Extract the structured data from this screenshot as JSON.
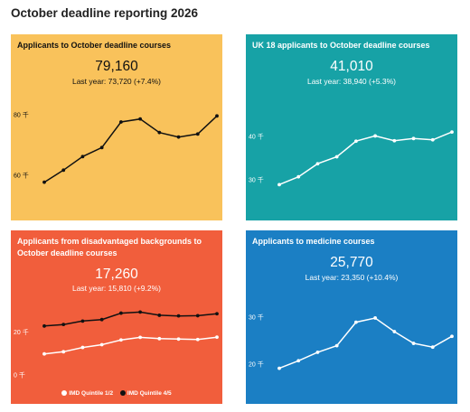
{
  "page": {
    "title": "October deadline reporting 2026"
  },
  "chart_data": [
    {
      "type": "line",
      "title": "Applicants to October deadline courses",
      "headline": "79,160",
      "subline": "Last year: 73,720 (+7.4%)",
      "y_ticks": [
        {
          "value": 60,
          "label": "60 千"
        },
        {
          "value": 80,
          "label": "80 千"
        }
      ],
      "ylim": [
        55,
        82
      ],
      "series": [
        {
          "values": [
            57.5,
            61.5,
            66.0,
            69.0,
            77.5,
            78.5,
            74.0,
            72.5,
            73.5,
            79.5
          ],
          "color": "#111111"
        }
      ],
      "colors": {
        "background": "#F9C25B",
        "text": "#111111"
      }
    },
    {
      "type": "line",
      "title": "UK 18 applicants to October deadline courses",
      "headline": "41,010",
      "subline": "Last year: 38,940 (+5.3%)",
      "y_ticks": [
        {
          "value": 30,
          "label": "30 千"
        },
        {
          "value": 40,
          "label": "40 千"
        }
      ],
      "ylim": [
        27,
        43
      ],
      "series": [
        {
          "values": [
            28.8,
            30.6,
            33.6,
            35.2,
            38.8,
            40.0,
            38.9,
            39.4,
            39.1,
            40.9
          ],
          "color": "#ffffff"
        }
      ],
      "colors": {
        "background": "#17A2A6",
        "text": "#ffffff"
      }
    },
    {
      "type": "line",
      "title": "Applicants from disadvantaged backgrounds to October deadline courses",
      "headline": "17,260",
      "subline": "Last year: 15,810 (+9.2%)",
      "y_ticks": [
        {
          "value": 0,
          "label": "0 千"
        },
        {
          "value": 20,
          "label": "20 千"
        }
      ],
      "ylim": [
        -2,
        30
      ],
      "series": [
        {
          "name": "IMD Quintile 1/2",
          "values": [
            9.5,
            10.5,
            12.5,
            13.8,
            16.0,
            17.2,
            16.6,
            16.4,
            16.2,
            17.3
          ],
          "color": "#ffffff"
        },
        {
          "name": "IMD Quintile 4/5",
          "values": [
            22.5,
            23.2,
            24.8,
            25.5,
            28.5,
            29.0,
            27.5,
            27.2,
            27.3,
            28.2
          ],
          "color": "#111111"
        }
      ],
      "legend": "bottom",
      "colors": {
        "background": "#F15E3C",
        "text": "#ffffff"
      }
    },
    {
      "type": "line",
      "title": "Applicants to medicine courses",
      "headline": "25,770",
      "subline": "Last year: 23,350 (+10.4%)",
      "y_ticks": [
        {
          "value": 20,
          "label": "20 千"
        },
        {
          "value": 30,
          "label": "30 千"
        }
      ],
      "ylim": [
        17,
        32
      ],
      "series": [
        {
          "values": [
            19.0,
            20.6,
            22.4,
            23.8,
            28.8,
            29.7,
            26.8,
            24.3,
            23.5,
            25.8
          ],
          "color": "#ffffff"
        }
      ],
      "colors": {
        "background": "#1B7FC4",
        "text": "#ffffff"
      }
    }
  ]
}
